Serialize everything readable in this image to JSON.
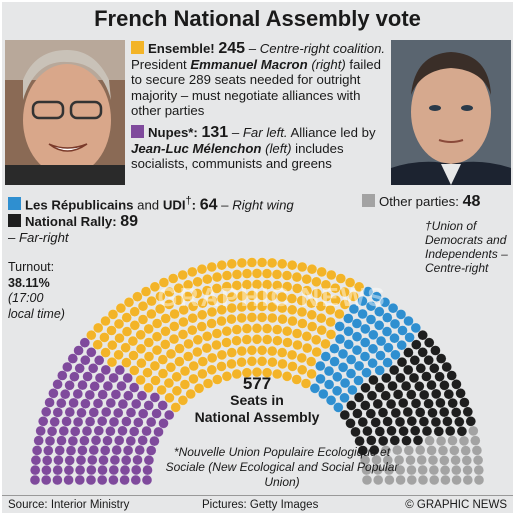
{
  "title": "French National Assembly vote",
  "parties": {
    "ensemble": {
      "name": "Ensemble!",
      "seats": "245",
      "dash": " – ",
      "desc_italic": "Centre-right coalition.",
      "desc": " President ",
      "leader": "Emmanuel Macron",
      "leader_note": " (right)",
      "desc2": " failed to secure 289 seats needed for outright majority – must negotiate alliances with other parties",
      "color": "#f3b428"
    },
    "nupes": {
      "name": "Nupes*:",
      "seats": "131",
      "dash": " – ",
      "desc_italic": "Far left.",
      "desc": " Alliance led by ",
      "leader": "Jean-Luc Mélenchon",
      "leader_note": " (left)",
      "desc2": " includes socialists, communists and greens",
      "color": "#7f4a9c"
    },
    "lr": {
      "name": "Les Républicains",
      "mid": " and ",
      "name2": "UDI",
      "dagger": "†",
      "sep": ": ",
      "seats": "64",
      "dash": " – ",
      "desc_italic": "Right wing",
      "color": "#2f8fd0"
    },
    "rn": {
      "name": "National Rally:",
      "seats": "89",
      "dash": "– ",
      "desc_italic": "Far-right",
      "color": "#1e1e1e"
    },
    "other": {
      "name": "Other parties:",
      "seats": "48",
      "color": "#a3a3a3"
    }
  },
  "udi_note": "†Union of Democrats and Independents – Centre-right",
  "turnout": {
    "label": "Turnout:",
    "value": "38.11%",
    "note": "(17:00 local time)"
  },
  "center": {
    "total": "577",
    "label1": "Seats in",
    "label2": "National Assembly"
  },
  "footnote": "*Nouvelle Union Populaire Ecologique et Sociale (New Ecological and Social Popular Union)",
  "footer": {
    "source": "Source: Interior Ministry",
    "pictures": "Pictures: Getty Images",
    "credit": "© GRAPHIC NEWS"
  },
  "watermark": "GRAPHIC NEWS",
  "chart_data": {
    "type": "parliament",
    "title": "French National Assembly vote",
    "total_seats": 577,
    "series": [
      {
        "name": "Nupes*",
        "value": 131,
        "color": "#7f4a9c"
      },
      {
        "name": "Ensemble!",
        "value": 245,
        "color": "#f3b428"
      },
      {
        "name": "Les Républicains and UDI",
        "value": 64,
        "color": "#2f8fd0"
      },
      {
        "name": "National Rally",
        "value": 89,
        "color": "#1e1e1e"
      },
      {
        "name": "Other parties",
        "value": 48,
        "color": "#a3a3a3"
      }
    ]
  }
}
